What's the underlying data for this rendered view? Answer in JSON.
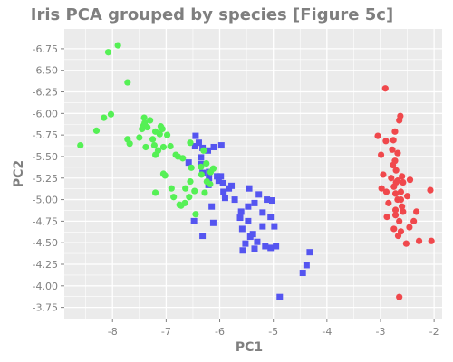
{
  "chart_data": {
    "type": "scatter",
    "title": "Iris PCA grouped by species [Figure 5c]",
    "xlabel": "PC1",
    "ylabel": "PC2",
    "xlim": [
      -8.9,
      -1.85
    ],
    "ylim": [
      -6.98,
      -3.62
    ],
    "y_inverted": true,
    "grid": true,
    "legend": "none",
    "x_ticks": [
      -8,
      -7,
      -6,
      -5,
      -4,
      -3,
      -2
    ],
    "y_ticks": [
      -3.75,
      -4.0,
      -4.25,
      -4.5,
      -4.75,
      -5.0,
      -5.25,
      -5.5,
      -5.75,
      -6.0,
      -6.25,
      -6.5,
      -6.75
    ],
    "x_tick_labels": [
      "-8",
      "-7",
      "-6",
      "-5",
      "-4",
      "-3",
      "-2"
    ],
    "y_tick_labels": [
      "-3.75",
      "-4.00",
      "-4.25",
      "-4.50",
      "-4.75",
      "-5.00",
      "-5.25",
      "-5.50",
      "-5.75",
      "-6.00",
      "-6.25",
      "-6.50",
      "-6.75"
    ],
    "colors": {
      "background": "#ebebeb",
      "grid": "#ffffff",
      "text": "#7f7f7f"
    },
    "series": [
      {
        "color": "#f0484c",
        "marker": "circle",
        "points": [
          [
            -2.65,
            -3.87
          ],
          [
            -2.52,
            -4.49
          ],
          [
            -2.28,
            -4.52
          ],
          [
            -2.05,
            -4.52
          ],
          [
            -2.67,
            -4.58
          ],
          [
            -2.62,
            -4.63
          ],
          [
            -2.75,
            -4.66
          ],
          [
            -2.46,
            -4.68
          ],
          [
            -2.38,
            -4.75
          ],
          [
            -2.65,
            -4.75
          ],
          [
            -2.72,
            -4.82
          ],
          [
            -2.88,
            -4.8
          ],
          [
            -2.58,
            -4.86
          ],
          [
            -2.33,
            -4.86
          ],
          [
            -2.72,
            -4.88
          ],
          [
            -2.6,
            -4.92
          ],
          [
            -2.85,
            -4.96
          ],
          [
            -2.62,
            -5.0
          ],
          [
            -2.68,
            -5.0
          ],
          [
            -2.5,
            -5.04
          ],
          [
            -2.72,
            -5.07
          ],
          [
            -2.89,
            -5.09
          ],
          [
            -2.62,
            -5.09
          ],
          [
            -2.07,
            -5.11
          ],
          [
            -2.98,
            -5.13
          ],
          [
            -2.75,
            -5.15
          ],
          [
            -2.58,
            -5.2
          ],
          [
            -2.71,
            -5.2
          ],
          [
            -2.68,
            -5.22
          ],
          [
            -2.45,
            -5.23
          ],
          [
            -2.8,
            -5.25
          ],
          [
            -2.6,
            -5.27
          ],
          [
            -2.95,
            -5.29
          ],
          [
            -2.71,
            -5.34
          ],
          [
            -2.77,
            -5.4
          ],
          [
            -2.73,
            -5.45
          ],
          [
            -2.99,
            -5.52
          ],
          [
            -2.68,
            -5.54
          ],
          [
            -2.78,
            -5.58
          ],
          [
            -2.9,
            -5.68
          ],
          [
            -2.76,
            -5.69
          ],
          [
            -3.05,
            -5.74
          ],
          [
            -2.73,
            -5.79
          ],
          [
            -2.65,
            -5.92
          ],
          [
            -2.63,
            -5.97
          ],
          [
            -2.91,
            -6.29
          ]
        ]
      },
      {
        "color": "#5555f0",
        "marker": "square",
        "points": [
          [
            -4.88,
            -3.87
          ],
          [
            -4.45,
            -4.15
          ],
          [
            -4.38,
            -4.24
          ],
          [
            -4.32,
            -4.39
          ],
          [
            -5.05,
            -4.44
          ],
          [
            -5.15,
            -4.46
          ],
          [
            -4.95,
            -4.46
          ],
          [
            -5.57,
            -4.41
          ],
          [
            -5.35,
            -4.43
          ],
          [
            -5.52,
            -4.49
          ],
          [
            -5.3,
            -4.51
          ],
          [
            -5.43,
            -4.57
          ],
          [
            -5.38,
            -4.6
          ],
          [
            -6.32,
            -4.58
          ],
          [
            -5.58,
            -4.66
          ],
          [
            -4.98,
            -4.69
          ],
          [
            -5.2,
            -4.69
          ],
          [
            -5.47,
            -4.75
          ],
          [
            -5.62,
            -4.79
          ],
          [
            -6.12,
            -4.73
          ],
          [
            -6.48,
            -4.75
          ],
          [
            -5.05,
            -4.8
          ],
          [
            -5.2,
            -4.85
          ],
          [
            -5.6,
            -4.86
          ],
          [
            -5.47,
            -4.92
          ],
          [
            -6.15,
            -4.92
          ],
          [
            -5.35,
            -4.96
          ],
          [
            -5.02,
            -4.99
          ],
          [
            -5.12,
            -5.0
          ],
          [
            -5.72,
            -5.0
          ],
          [
            -5.9,
            -5.02
          ],
          [
            -5.27,
            -5.06
          ],
          [
            -5.93,
            -5.09
          ],
          [
            -5.83,
            -5.13
          ],
          [
            -5.45,
            -5.13
          ],
          [
            -5.78,
            -5.16
          ],
          [
            -5.94,
            -5.19
          ],
          [
            -6.21,
            -5.17
          ],
          [
            -6.02,
            -5.22
          ],
          [
            -6.2,
            -5.25
          ],
          [
            -6.05,
            -5.27
          ],
          [
            -5.98,
            -5.27
          ],
          [
            -6.32,
            -5.31
          ],
          [
            -6.2,
            -5.32
          ],
          [
            -6.35,
            -5.41
          ],
          [
            -6.58,
            -5.43
          ],
          [
            -6.35,
            -5.49
          ],
          [
            -6.22,
            -5.57
          ],
          [
            -6.32,
            -5.6
          ],
          [
            -6.11,
            -5.61
          ],
          [
            -5.97,
            -5.63
          ],
          [
            -6.46,
            -5.62
          ],
          [
            -6.39,
            -5.66
          ],
          [
            -6.45,
            -5.74
          ]
        ]
      },
      {
        "color": "#55f055",
        "marker": "circle",
        "points": [
          [
            -6.45,
            -4.83
          ],
          [
            -6.72,
            -4.93
          ],
          [
            -6.65,
            -4.96
          ],
          [
            -6.57,
            -5.03
          ],
          [
            -6.86,
            -5.03
          ],
          [
            -6.75,
            -4.94
          ],
          [
            -7.2,
            -5.08
          ],
          [
            -6.28,
            -5.08
          ],
          [
            -6.47,
            -5.1
          ],
          [
            -6.64,
            -5.13
          ],
          [
            -6.9,
            -5.13
          ],
          [
            -6.18,
            -5.18
          ],
          [
            -6.24,
            -5.21
          ],
          [
            -6.55,
            -5.21
          ],
          [
            -7.02,
            -5.28
          ],
          [
            -7.05,
            -5.3
          ],
          [
            -6.34,
            -5.29
          ],
          [
            -6.17,
            -5.32
          ],
          [
            -6.12,
            -5.36
          ],
          [
            -6.53,
            -5.37
          ],
          [
            -6.35,
            -5.38
          ],
          [
            -6.25,
            -5.42
          ],
          [
            -6.69,
            -5.48
          ],
          [
            -6.78,
            -5.5
          ],
          [
            -7.2,
            -5.52
          ],
          [
            -6.82,
            -5.52
          ],
          [
            -7.15,
            -5.57
          ],
          [
            -6.3,
            -5.57
          ],
          [
            -7.05,
            -5.61
          ],
          [
            -7.38,
            -5.61
          ],
          [
            -6.92,
            -5.62
          ],
          [
            -7.22,
            -5.63
          ],
          [
            -7.68,
            -5.65
          ],
          [
            -6.55,
            -5.66
          ],
          [
            -7.72,
            -5.7
          ],
          [
            -7.25,
            -5.7
          ],
          [
            -7.5,
            -5.72
          ],
          [
            -6.98,
            -5.75
          ],
          [
            -7.12,
            -5.76
          ],
          [
            -7.2,
            -5.79
          ],
          [
            -7.07,
            -5.82
          ],
          [
            -7.45,
            -5.82
          ],
          [
            -7.35,
            -5.84
          ],
          [
            -7.1,
            -5.85
          ],
          [
            -7.42,
            -5.86
          ],
          [
            -7.4,
            -5.89
          ],
          [
            -7.3,
            -5.92
          ],
          [
            -7.41,
            -5.95
          ],
          [
            -8.6,
            -5.63
          ],
          [
            -8.3,
            -5.8
          ],
          [
            -8.16,
            -5.95
          ],
          [
            -8.03,
            -5.99
          ],
          [
            -7.72,
            -6.36
          ],
          [
            -8.08,
            -6.71
          ],
          [
            -7.9,
            -6.79
          ]
        ]
      }
    ]
  }
}
